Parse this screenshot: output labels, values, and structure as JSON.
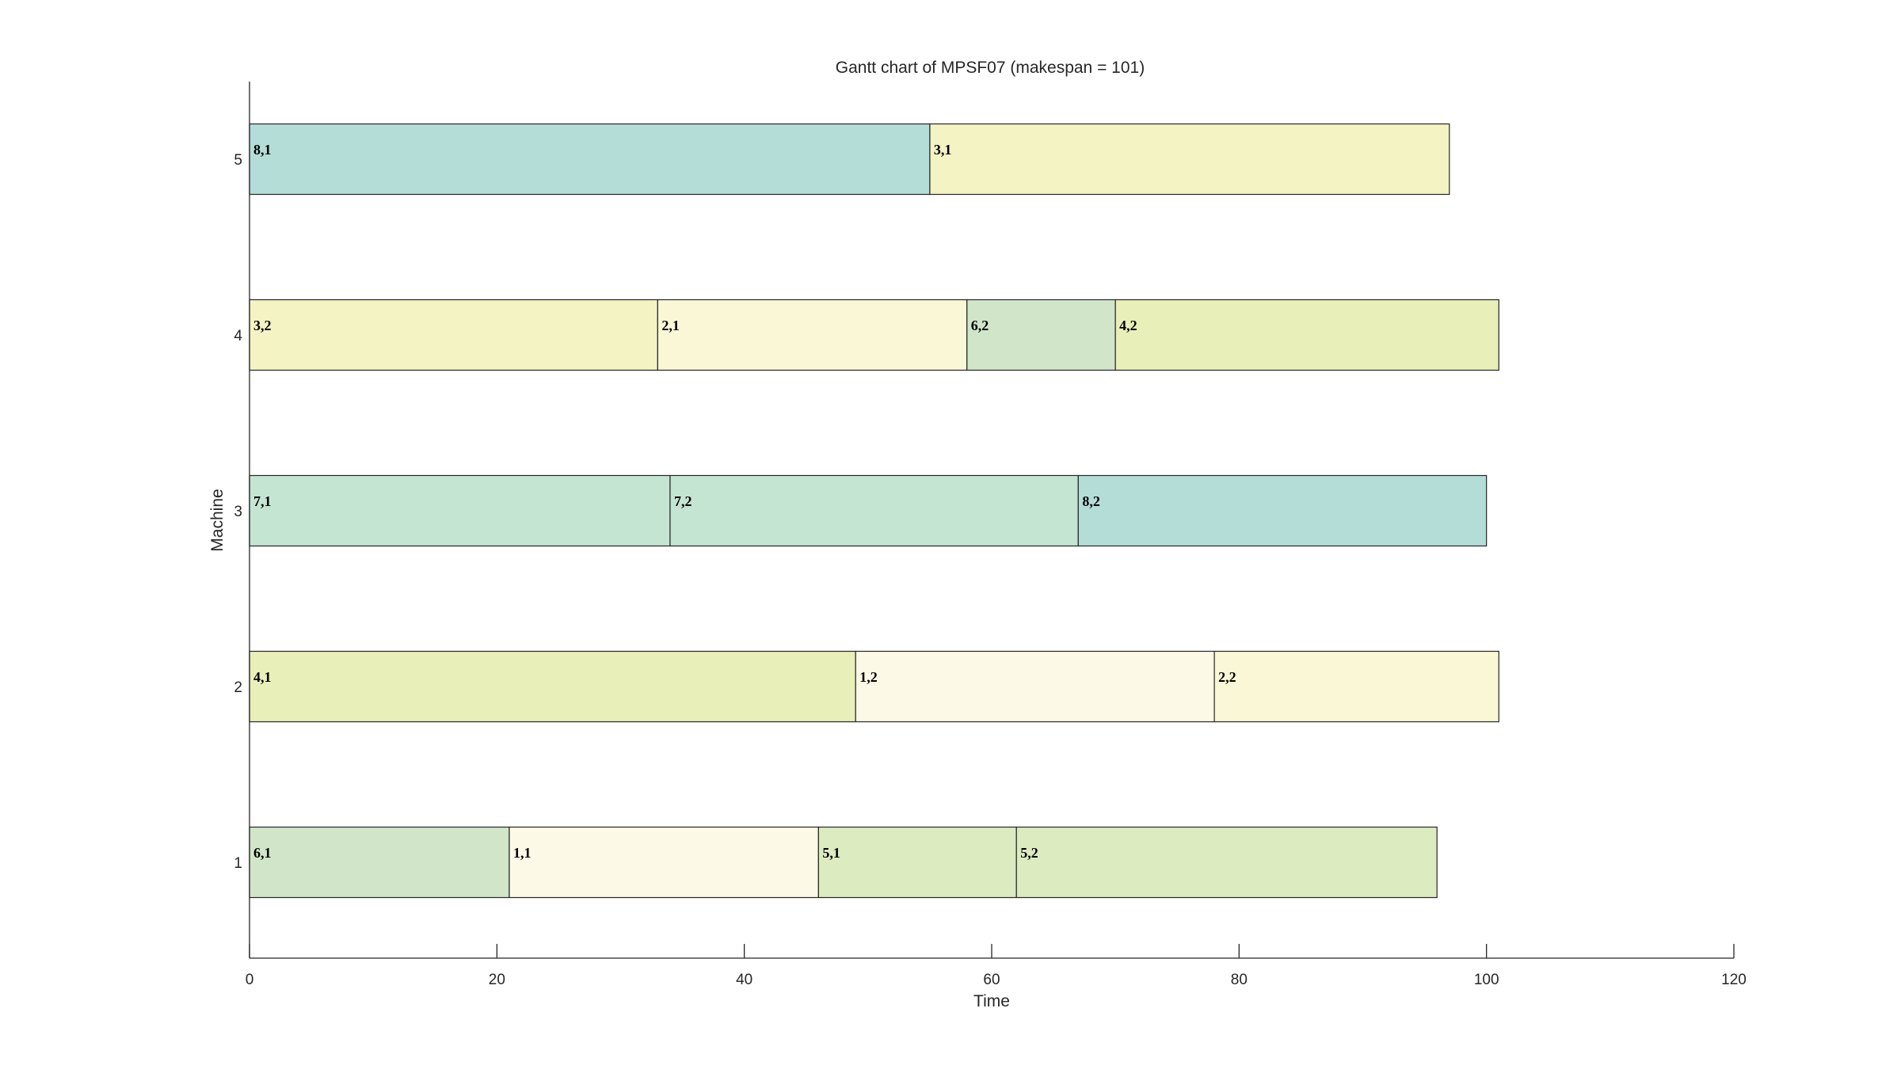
{
  "chart_data": {
    "type": "bar",
    "orientation": "horizontal-gantt",
    "title": "Gantt chart of MPSF07 (makespan = 101)",
    "xlabel": "Time",
    "ylabel": "Machine",
    "xlim": [
      0,
      120
    ],
    "xticks": [
      0,
      20,
      40,
      60,
      80,
      100,
      120
    ],
    "categories": [
      "1",
      "2",
      "3",
      "4",
      "5"
    ],
    "grid": false,
    "tasks": [
      {
        "machine": "1",
        "label": "6,1",
        "start": 0,
        "end": 21,
        "color": "#d1e6c9"
      },
      {
        "machine": "1",
        "label": "1,1",
        "start": 21,
        "end": 46,
        "color": "#fcf9e6"
      },
      {
        "machine": "1",
        "label": "5,1",
        "start": 46,
        "end": 62,
        "color": "#dcebc0"
      },
      {
        "machine": "1",
        "label": "5,2",
        "start": 62,
        "end": 96,
        "color": "#dcebc0"
      },
      {
        "machine": "2",
        "label": "4,1",
        "start": 0,
        "end": 49,
        "color": "#e8efb8"
      },
      {
        "machine": "2",
        "label": "1,2",
        "start": 49,
        "end": 78,
        "color": "#fcf9e6"
      },
      {
        "machine": "2",
        "label": "2,2",
        "start": 78,
        "end": 101,
        "color": "#faf7d6"
      },
      {
        "machine": "3",
        "label": "7,1",
        "start": 0,
        "end": 34,
        "color": "#c5e5d3"
      },
      {
        "machine": "3",
        "label": "7,2",
        "start": 34,
        "end": 67,
        "color": "#c5e5d3"
      },
      {
        "machine": "3",
        "label": "8,2",
        "start": 67,
        "end": 100,
        "color": "#b4ddd8"
      },
      {
        "machine": "4",
        "label": "3,2",
        "start": 0,
        "end": 33,
        "color": "#f4f3c4"
      },
      {
        "machine": "4",
        "label": "2,1",
        "start": 33,
        "end": 58,
        "color": "#faf7d6"
      },
      {
        "machine": "4",
        "label": "6,2",
        "start": 58,
        "end": 70,
        "color": "#d1e6c9"
      },
      {
        "machine": "4",
        "label": "4,2",
        "start": 70,
        "end": 101,
        "color": "#e8efb8"
      },
      {
        "machine": "5",
        "label": "8,1",
        "start": 0,
        "end": 55,
        "color": "#b4ddd8"
      },
      {
        "machine": "5",
        "label": "3,1",
        "start": 55,
        "end": 97,
        "color": "#f4f3c4"
      }
    ]
  }
}
